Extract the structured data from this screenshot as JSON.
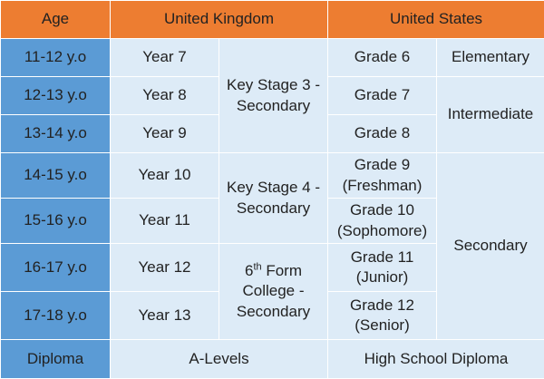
{
  "header": {
    "age": "Age",
    "uk": "United Kingdom",
    "us": "United States"
  },
  "rows": [
    {
      "age": "11-12 y.o",
      "uk_year": "Year 7",
      "us_grade": "Grade 6"
    },
    {
      "age": "12-13 y.o",
      "uk_year": "Year 8",
      "us_grade": "Grade 7"
    },
    {
      "age": "13-14 y.o",
      "uk_year": "Year 9",
      "us_grade": "Grade 8"
    },
    {
      "age": "14-15 y.o",
      "uk_year": "Year 10",
      "us_grade": "Grade 9",
      "us_grade_note": "(Freshman)"
    },
    {
      "age": "15-16 y.o",
      "uk_year": "Year 11",
      "us_grade": "Grade 10",
      "us_grade_note": "(Sophomore)"
    },
    {
      "age": "16-17 y.o",
      "uk_year": "Year 12",
      "us_grade": "Grade 11",
      "us_grade_note": "(Junior)"
    },
    {
      "age": "17-18 y.o",
      "uk_year": "Year 13",
      "us_grade": "Grade 12",
      "us_grade_note": "(Senior)"
    }
  ],
  "uk_stages": {
    "ks3_line1": "Key Stage 3 -",
    "ks3_line2": "Secondary",
    "ks4_line1": "Key Stage 4 -",
    "ks4_line2": "Secondary",
    "form_num": "6",
    "form_sup": "th",
    "form_word": " Form",
    "form_line2": "College -",
    "form_line3": "Secondary"
  },
  "us_levels": {
    "elementary": "Elementary",
    "intermediate": "Intermediate",
    "secondary": "Secondary"
  },
  "footer": {
    "label": "Diploma",
    "uk": "A-Levels",
    "us": "High School Diploma"
  }
}
